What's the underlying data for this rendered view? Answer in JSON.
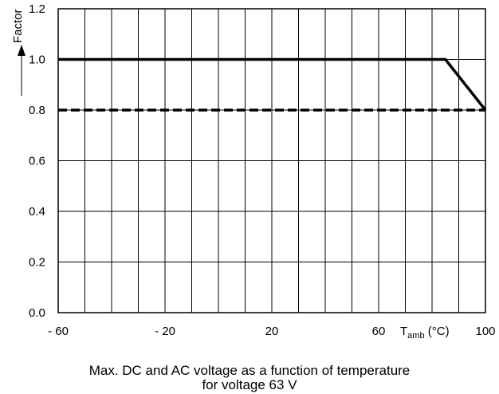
{
  "chart_data": {
    "type": "line",
    "ylabel": "Factor",
    "xlabel": {
      "base": "T",
      "sub": "amb",
      "unit": " (°C)"
    },
    "xlim": [
      -60,
      100
    ],
    "ylim": [
      0.0,
      1.2
    ],
    "x_ticks": [
      -60,
      -20,
      20,
      60,
      100
    ],
    "x_tick_labels": [
      "- 60",
      "- 20",
      "20",
      "60",
      "100"
    ],
    "y_ticks": [
      0.0,
      0.2,
      0.4,
      0.6,
      0.8,
      1.0,
      1.2
    ],
    "y_tick_labels": [
      "0.0",
      "0.2",
      "0.4",
      "0.6",
      "0.8",
      "1.0",
      "1.2"
    ],
    "grid": true,
    "series": [
      {
        "style": "solid",
        "x": [
          -60,
          85,
          100
        ],
        "y": [
          1.0,
          1.0,
          0.8
        ]
      },
      {
        "style": "dashed",
        "x": [
          -60,
          100
        ],
        "y": [
          0.8,
          0.8
        ]
      }
    ],
    "caption": [
      "Max. DC and AC voltage as a function of temperature",
      "for voltage 63 V"
    ]
  }
}
